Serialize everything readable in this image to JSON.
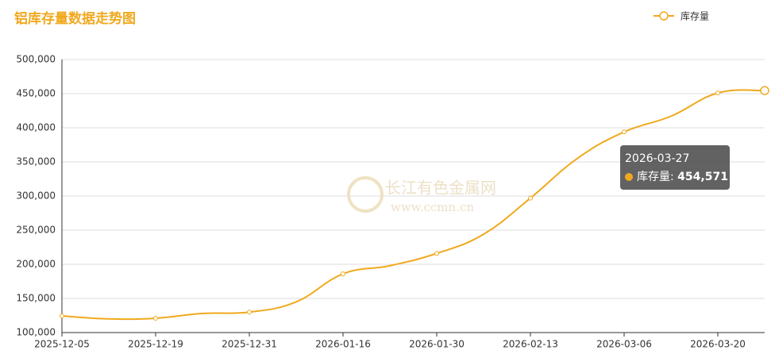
{
  "chart_data": {
    "type": "line",
    "title": "铝库存量数据走势图",
    "watermark": [
      "长江有色金属网",
      "www.ccmn.cn"
    ],
    "categories": [
      "2025-12-05",
      null,
      "2025-12-19",
      null,
      "2025-12-31",
      null,
      "2026-01-16",
      null,
      "2026-01-30",
      null,
      "2026-02-13",
      null,
      "2026-03-06",
      null,
      "2026-03-20",
      "2026-03-27"
    ],
    "series": [
      {
        "name": "库存量",
        "color": "#f0a91e",
        "values": [
          124400,
          120000,
          121000,
          128000,
          130000,
          145000,
          186000,
          198000,
          216000,
          244000,
          297000,
          355000,
          394000,
          417000,
          451000,
          454571
        ],
        "value_labels": [
          null,
          null,
          null,
          null,
          null,
          null,
          null,
          null,
          null,
          null,
          null,
          null,
          null,
          null,
          null,
          "454,571"
        ]
      }
    ],
    "ylim": [
      100000,
      500000
    ],
    "yticks": [
      {
        "value": 100000,
        "label": "100,000"
      },
      {
        "value": 150000,
        "label": "150,000"
      },
      {
        "value": 200000,
        "label": "200,000"
      },
      {
        "value": 250000,
        "label": "250,000"
      },
      {
        "value": 300000,
        "label": "300,000"
      },
      {
        "value": 350000,
        "label": "350,000"
      },
      {
        "value": 400000,
        "label": "400,000"
      },
      {
        "value": 450000,
        "label": "450,000"
      },
      {
        "value": 500000,
        "label": "500,000"
      }
    ],
    "grid": true,
    "legend": "top-right"
  }
}
